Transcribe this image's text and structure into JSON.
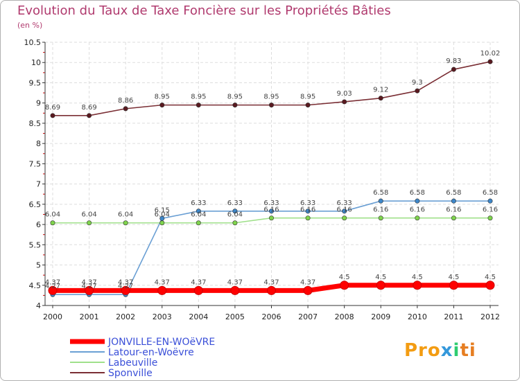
{
  "title": "Evolution du Taux de Taxe Foncière sur les Propriétés Bâties",
  "unit_label": "(en %)",
  "logo": {
    "parts": [
      "Pro",
      "x",
      "i",
      "ti"
    ]
  },
  "chart_data": {
    "type": "line",
    "x": [
      "2000",
      "2001",
      "2002",
      "2003",
      "2004",
      "2005",
      "2006",
      "2007",
      "2008",
      "2009",
      "2010",
      "2011",
      "2012"
    ],
    "ylim": [
      4,
      10.5
    ],
    "yticks": [
      "4",
      "4.5",
      "5",
      "5.5",
      "6",
      "6.5",
      "7",
      "7.5",
      "8",
      "8.5",
      "9",
      "9.5",
      "10",
      "10.5"
    ],
    "series": [
      {
        "name": "JONVILLE-EN-WOëVRE",
        "color": "#ff0000",
        "text_color": "#3a4fd8",
        "emphasis": true,
        "values": [
          4.37,
          4.37,
          4.37,
          4.37,
          4.37,
          4.37,
          4.37,
          4.37,
          4.5,
          4.5,
          4.5,
          4.5,
          4.5
        ],
        "labels": [
          "4.37",
          "4.37",
          "4.37",
          "4.37",
          "4.37",
          "4.37",
          "4.37",
          "4.37",
          "4.5",
          "4.5",
          "4.5",
          "4.5",
          "4.5"
        ]
      },
      {
        "name": "Latour-en-Woëvre",
        "color": "#6a9fd4",
        "marker": "#3d86c8",
        "text_color": "#3a4fd8",
        "emphasis": false,
        "values": [
          4.27,
          4.27,
          4.27,
          6.15,
          6.33,
          6.33,
          6.33,
          6.33,
          6.33,
          6.58,
          6.58,
          6.58,
          6.58
        ],
        "labels": [
          "4.27",
          "4.27",
          "4.27",
          "6.15",
          "6.33",
          "6.33",
          "6.33",
          "6.33",
          "6.33",
          "6.58",
          "6.58",
          "6.58",
          "6.58"
        ]
      },
      {
        "name": "Labeuville",
        "color": "#9fe08a",
        "marker": "#7fd44c",
        "text_color": "#3a4fd8",
        "emphasis": false,
        "values": [
          6.04,
          6.04,
          6.04,
          6.04,
          6.04,
          6.04,
          6.16,
          6.16,
          6.16,
          6.16,
          6.16,
          6.16,
          6.16
        ],
        "labels": [
          "6.04",
          "6.04",
          "6.04",
          "6.04",
          "6.04",
          "6.04",
          "6.16",
          "6.16",
          "6.16",
          "6.16",
          "6.16",
          "6.16",
          "6.16"
        ]
      },
      {
        "name": "Sponville",
        "color": "#7a2e34",
        "marker": "#5a1a20",
        "text_color": "#3a4fd8",
        "emphasis": false,
        "values": [
          8.69,
          8.69,
          8.86,
          8.95,
          8.95,
          8.95,
          8.95,
          8.95,
          9.03,
          9.12,
          9.3,
          9.83,
          10.02
        ],
        "labels": [
          "8.69",
          "8.69",
          "8.86",
          "8.95",
          "8.95",
          "8.95",
          "8.95",
          "8.95",
          "9.03",
          "9.12",
          "9.3",
          "9.83",
          "10.02"
        ]
      }
    ]
  }
}
